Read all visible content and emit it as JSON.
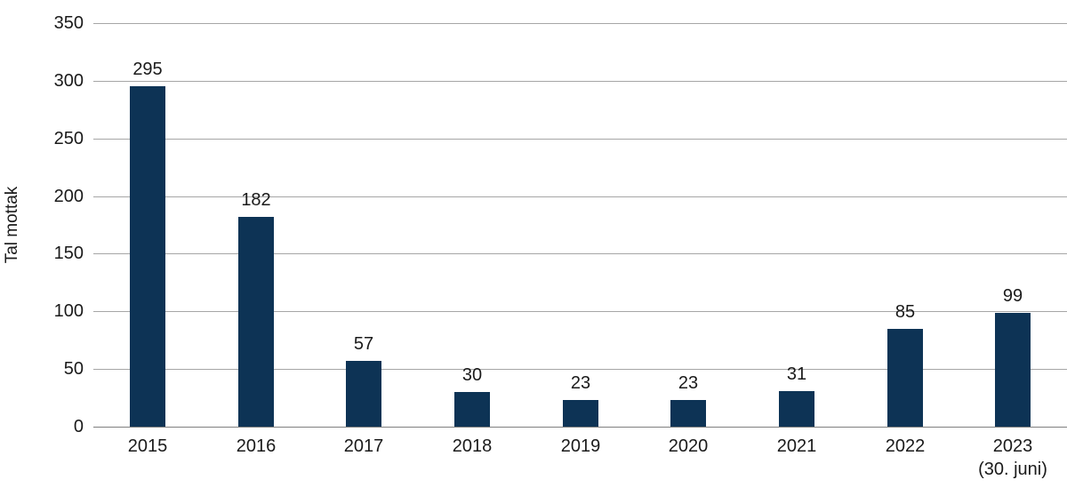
{
  "chart_data": {
    "type": "bar",
    "categories": [
      "2015",
      "2016",
      "2017",
      "2018",
      "2019",
      "2020",
      "2021",
      "2022",
      "2023\n(30. juni)"
    ],
    "values": [
      295,
      182,
      57,
      30,
      23,
      23,
      31,
      85,
      99
    ],
    "ylabel": "Tal mottak",
    "xlabel": "",
    "ylim": [
      0,
      350
    ],
    "yticks": [
      0,
      50,
      100,
      150,
      200,
      250,
      300,
      350
    ],
    "grid": "horizontal",
    "legend": "none",
    "bar_color": "#0d3355",
    "gridline_color": "#a6a6a6",
    "axis_line_color": "#7f7f7f",
    "text_color": "#1a1a1a"
  }
}
